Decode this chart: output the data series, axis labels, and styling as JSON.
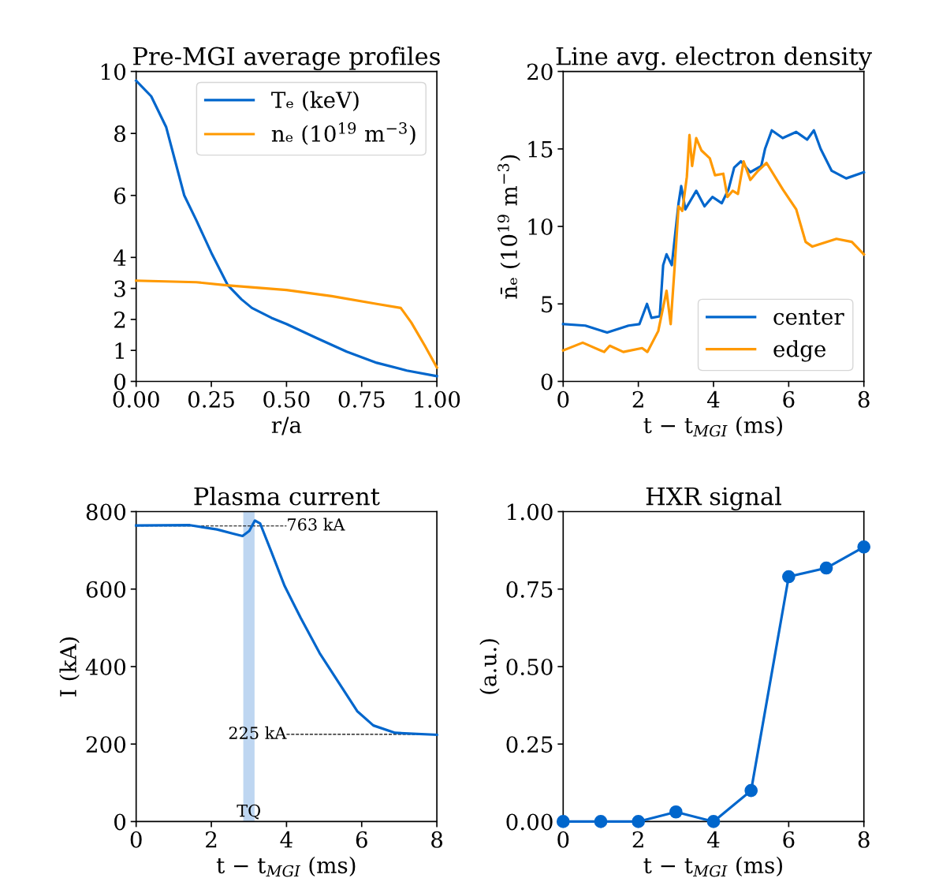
{
  "chart_data": [
    {
      "type": "line",
      "title": "Pre-MGI average profiles",
      "xlabel": "r/a",
      "legend": "top right",
      "grid": false,
      "xlim": [
        0,
        1
      ],
      "xticks": [
        {
          "value": 0,
          "label": "0.00"
        },
        {
          "value": 0.25,
          "label": "0.25"
        },
        {
          "value": 0.5,
          "label": "0.50"
        },
        {
          "value": 0.75,
          "label": "0.75"
        },
        {
          "value": 1,
          "label": "1.00"
        }
      ],
      "ylim": [
        0,
        10
      ],
      "yticks": [
        0,
        1,
        2,
        3,
        4,
        6,
        8,
        10
      ],
      "series": [
        {
          "name": "Tₑ (keV)",
          "color": "#0066cc",
          "x": [
            0,
            0.05,
            0.1,
            0.16,
            0.2,
            0.25,
            0.305,
            0.35,
            0.385,
            0.45,
            0.5,
            0.6,
            0.7,
            0.8,
            0.9,
            1.0
          ],
          "values": [
            9.7,
            9.2,
            8.2,
            6.0,
            5.2,
            4.15,
            3.1,
            2.65,
            2.37,
            2.05,
            1.85,
            1.4,
            0.96,
            0.6,
            0.35,
            0.17
          ]
        },
        {
          "name": "nₑ (10$^{19}$ m$^{−3}$)",
          "color": "#ff9900",
          "x": [
            0,
            0.2,
            0.3,
            0.5,
            0.65,
            0.8,
            0.88,
            0.915,
            0.96,
            1.0
          ],
          "values": [
            3.25,
            3.2,
            3.1,
            2.95,
            2.75,
            2.5,
            2.37,
            1.9,
            1.15,
            0.45
          ]
        }
      ]
    },
    {
      "type": "line",
      "title": "Line avg. electron density",
      "xlabel": "t − t$_{MGI}$ (ms)",
      "ylabel": "n̄ₑ (10$^{19}$ m$^{−3}$)",
      "legend": "bottom right",
      "grid": false,
      "xlim": [
        0,
        8
      ],
      "xticks": [
        0,
        2,
        4,
        6,
        8
      ],
      "ylim": [
        0,
        20
      ],
      "yticks": [
        0,
        5,
        10,
        15,
        20
      ],
      "series": [
        {
          "name": "center",
          "color": "#0066cc",
          "x": [
            0,
            0.59,
            1.17,
            1.74,
            2.03,
            2.23,
            2.35,
            2.57,
            2.66,
            2.75,
            2.89,
            3.07,
            3.14,
            3.25,
            3.54,
            3.76,
            3.97,
            4.22,
            4.4,
            4.55,
            4.73,
            4.98,
            5.27,
            5.37,
            5.55,
            5.84,
            6.2,
            6.49,
            6.67,
            6.85,
            7.14,
            7.53,
            8.0
          ],
          "values": [
            3.7,
            3.6,
            3.15,
            3.6,
            3.7,
            5.0,
            4.1,
            4.2,
            7.5,
            8.2,
            7.5,
            11.5,
            12.6,
            11.1,
            12.3,
            11.3,
            11.9,
            11.5,
            12.4,
            13.8,
            14.2,
            13.5,
            13.9,
            15.0,
            16.2,
            15.7,
            16.1,
            15.6,
            16.2,
            15.0,
            13.6,
            13.1,
            13.5
          ]
        },
        {
          "name": "edge",
          "color": "#ff9900",
          "x": [
            0,
            0.52,
            1.09,
            1.24,
            1.6,
            2.1,
            2.24,
            2.53,
            2.75,
            2.86,
            2.96,
            3.07,
            3.17,
            3.29,
            3.36,
            3.43,
            3.54,
            3.68,
            3.9,
            4.04,
            4.26,
            4.37,
            4.51,
            4.65,
            4.8,
            4.98,
            5.19,
            5.41,
            5.84,
            6.2,
            6.45,
            6.63,
            7.27,
            7.68,
            8.0
          ],
          "values": [
            2.0,
            2.5,
            1.9,
            2.3,
            1.9,
            2.15,
            1.9,
            3.25,
            5.85,
            3.7,
            7.2,
            11.3,
            11.0,
            13.2,
            15.9,
            13.9,
            15.7,
            14.9,
            14.4,
            13.3,
            13.4,
            11.9,
            12.3,
            12.1,
            14.2,
            13.0,
            13.6,
            14.1,
            12.4,
            11.1,
            9.0,
            8.7,
            9.2,
            9.0,
            8.2
          ]
        }
      ]
    },
    {
      "type": "line",
      "title": "Plasma current",
      "xlabel": "t − t$_{MGI}$ (ms)",
      "ylabel": "I (kA)",
      "grid": false,
      "xlim": [
        0,
        8
      ],
      "xticks": [
        0,
        2,
        4,
        6,
        8
      ],
      "ylim": [
        0,
        800
      ],
      "yticks": [
        0,
        200,
        400,
        600,
        800
      ],
      "series": [
        {
          "color": "#0066cc",
          "x": [
            0,
            1.43,
            2.15,
            2.58,
            2.83,
            3.01,
            3.16,
            3.3,
            3.59,
            3.95,
            4.38,
            4.88,
            5.38,
            5.88,
            6.31,
            6.89,
            8.0
          ],
          "values": [
            764,
            765,
            754,
            743,
            737,
            750,
            777,
            769,
            698,
            608,
            525,
            435,
            360,
            285,
            248,
            229,
            224
          ]
        }
      ],
      "ref_lines": [
        {
          "axis": "y",
          "value": 763,
          "label": "763 kA",
          "color": "#000000",
          "line_style": "dashed"
        },
        {
          "axis": "y",
          "value": 225,
          "label": "225 kA",
          "color": "#000000",
          "line_style": "dashed"
        }
      ],
      "bands": [
        {
          "axis": "x",
          "from": 2.85,
          "to": 3.15,
          "label": "TQ",
          "color": "#a8c8ec"
        }
      ]
    },
    {
      "type": "line",
      "title": "HXR signal",
      "xlabel": "t − t$_{MGI}$ (ms)",
      "ylabel": "(a.u.)",
      "grid": false,
      "marker": "circle",
      "xlim": [
        0,
        8
      ],
      "xticks": [
        0,
        2,
        4,
        6,
        8
      ],
      "ylim": [
        0,
        1
      ],
      "yticks": [
        {
          "value": 0,
          "label": "0.00"
        },
        {
          "value": 0.25,
          "label": "0.25"
        },
        {
          "value": 0.5,
          "label": "0.50"
        },
        {
          "value": 0.75,
          "label": "0.75"
        },
        {
          "value": 1,
          "label": "1.00"
        }
      ],
      "series": [
        {
          "color": "#0066cc",
          "x": [
            0,
            1,
            2,
            3,
            4,
            5,
            6,
            7,
            8
          ],
          "values": [
            0,
            0,
            0,
            0.031,
            0,
            0.1,
            0.79,
            0.818,
            0.886
          ]
        }
      ]
    }
  ]
}
